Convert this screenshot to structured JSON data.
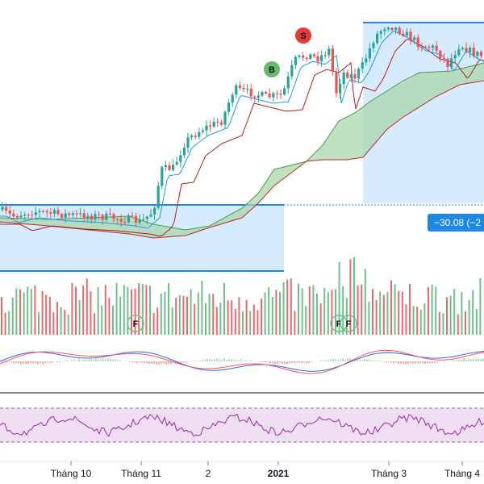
{
  "colors": {
    "up": "#26a69a",
    "down": "#ef5350",
    "vol_up": "#6fbf8a",
    "vol_down": "#e86a6a",
    "tenkan": "#2196f3",
    "kijun": "#b71c1c",
    "span_a": "#43a047",
    "span_b": "#c62828",
    "cloud_green": "#a5d6a7",
    "cloud_red": "#f8bbd0",
    "box_fill": "#bbdefb",
    "box_line": "#1e88e5",
    "macd": "#2962ff",
    "signal": "#ff5252",
    "rsi": "#9c27b0",
    "rsi_band": "#e1bee7",
    "price_tag": "#1e88e5",
    "buy_marker": "#66bb6a",
    "sell_marker": "#e53935"
  },
  "chart_data": {
    "type": "candlestick",
    "x_axis": {
      "tick_labels": [
        "Tháng 10",
        "Tháng 11",
        "2",
        "2021",
        "Tháng 3",
        "Tháng 4"
      ],
      "bold_labels": [
        "2021"
      ]
    },
    "price_tag": "−30.08 (−2",
    "markers": [
      {
        "label": "B",
        "kind": "buy"
      },
      {
        "label": "S",
        "kind": "sell"
      }
    ],
    "volume_markers": [
      "F",
      "F",
      "F"
    ],
    "price_range": [
      80,
      200
    ],
    "price_candles_approx": [
      [
        128,
        129,
        127,
        128
      ],
      [
        128,
        129,
        127,
        128
      ],
      [
        128,
        129,
        127,
        128
      ],
      [
        128,
        129,
        126,
        127
      ]
    ],
    "panes": [
      "price-ichimoku",
      "volume",
      "macd",
      "rsi"
    ]
  }
}
